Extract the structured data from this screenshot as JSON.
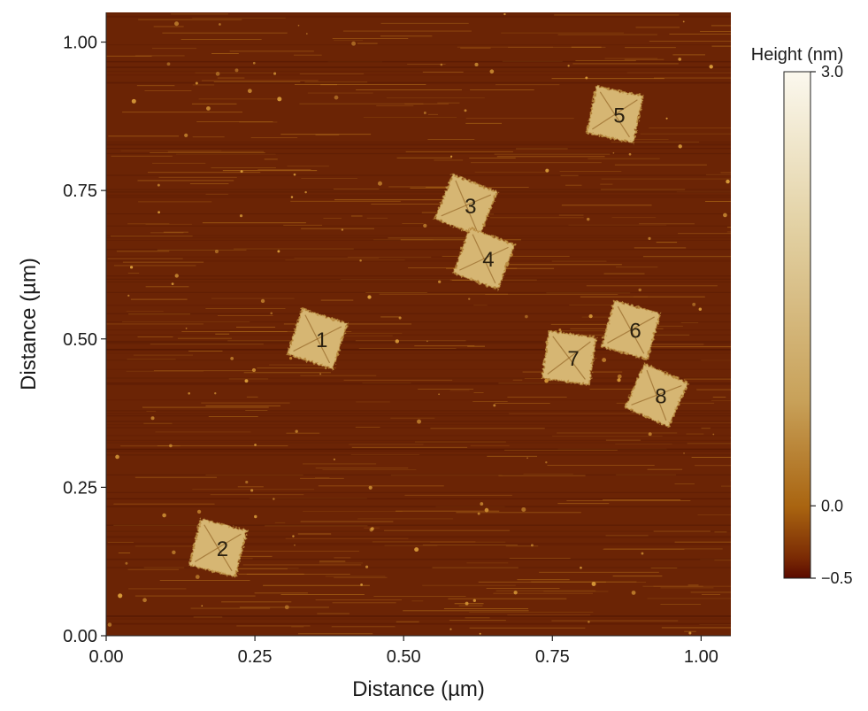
{
  "chart_data": {
    "type": "heatmap",
    "xlabel": "Distance (µm)",
    "ylabel": "Distance (µm)",
    "xlim": [
      0,
      1.05
    ],
    "ylim": [
      0,
      1.05
    ],
    "x_ticks": [
      0.0,
      0.25,
      0.5,
      0.75,
      1.0
    ],
    "y_ticks": [
      0.0,
      0.25,
      0.5,
      0.75,
      1.0
    ],
    "x_tick_labels": [
      "0.00",
      "0.25",
      "0.50",
      "0.75",
      "1.00"
    ],
    "y_tick_labels": [
      "0.00",
      "0.25",
      "0.50",
      "0.75",
      "1.00"
    ],
    "colorbar": {
      "title": "Height (nm)",
      "min": -0.5,
      "max": 3.0,
      "ticks": [
        3.0,
        0.0,
        -0.5
      ],
      "tick_labels": [
        "3.0",
        "0.0",
        "−0.5"
      ],
      "colors": [
        "#5a0a00",
        "#7a2a04",
        "#a96410",
        "#c8a159",
        "#e3d2a5",
        "#fbf8ee"
      ]
    },
    "background_color": "#6b2405",
    "feature_color": "#d6b673",
    "features": [
      {
        "label": "1",
        "x": 0.355,
        "y": 0.5,
        "height": 2.3
      },
      {
        "label": "2",
        "x": 0.188,
        "y": 0.148,
        "height": 2.3
      },
      {
        "label": "3",
        "x": 0.605,
        "y": 0.725,
        "height": 2.3
      },
      {
        "label": "4",
        "x": 0.635,
        "y": 0.635,
        "height": 2.3
      },
      {
        "label": "5",
        "x": 0.855,
        "y": 0.878,
        "height": 2.3
      },
      {
        "label": "6",
        "x": 0.882,
        "y": 0.515,
        "height": 2.3
      },
      {
        "label": "7",
        "x": 0.778,
        "y": 0.468,
        "height": 2.3
      },
      {
        "label": "8",
        "x": 0.925,
        "y": 0.405,
        "height": 2.3
      }
    ]
  }
}
